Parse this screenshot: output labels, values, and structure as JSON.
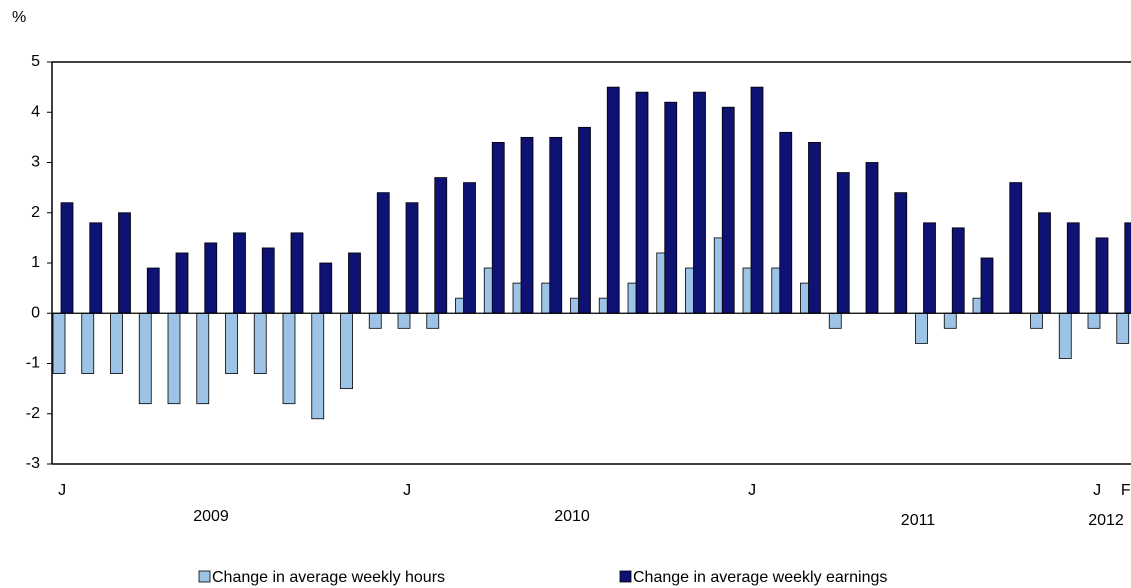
{
  "chart_data": {
    "type": "bar",
    "y_unit_label": "%",
    "categories": [
      "J",
      null,
      null,
      null,
      null,
      null,
      null,
      null,
      null,
      null,
      null,
      null,
      "J",
      null,
      null,
      null,
      null,
      null,
      null,
      null,
      null,
      null,
      null,
      null,
      "J",
      null,
      null,
      null,
      null,
      null,
      null,
      null,
      null,
      null,
      null,
      null,
      "J",
      "F"
    ],
    "years": [
      "2009",
      "2010",
      "2011",
      "2012"
    ],
    "series": [
      {
        "name": "Change in average weekly hours",
        "color": "#9dc3e6",
        "values": [
          -1.2,
          -1.2,
          -1.2,
          -1.8,
          -1.8,
          -1.8,
          -1.2,
          -1.2,
          -1.8,
          -2.1,
          -1.5,
          -0.3,
          -0.3,
          -0.3,
          0.3,
          0.9,
          0.6,
          0.6,
          0.3,
          0.3,
          0.6,
          1.2,
          0.9,
          1.5,
          0.9,
          0.9,
          0.6,
          -0.3,
          0,
          0,
          -0.6,
          -0.3,
          0.3,
          0,
          -0.3,
          -0.9,
          -0.3,
          -0.6
        ]
      },
      {
        "name": "Change in average weekly earnings",
        "color": "#0d1273",
        "values": [
          2.2,
          1.8,
          2.0,
          0.9,
          1.2,
          1.4,
          1.6,
          1.3,
          1.6,
          1.0,
          1.2,
          2.4,
          2.2,
          2.7,
          2.6,
          3.4,
          3.5,
          3.5,
          3.7,
          4.5,
          4.4,
          4.2,
          4.4,
          4.1,
          4.5,
          3.6,
          3.4,
          2.8,
          3.0,
          2.4,
          1.8,
          1.7,
          1.1,
          2.6,
          2.0,
          1.8,
          1.5,
          1.8
        ]
      }
    ],
    "ylim": [
      -3,
      5
    ],
    "yticks": [
      -3,
      -2,
      -1,
      0,
      1,
      2,
      3,
      4,
      5
    ]
  }
}
